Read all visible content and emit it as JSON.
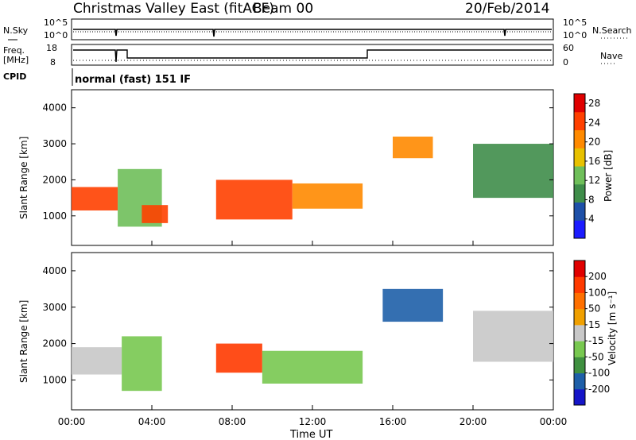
{
  "header": {
    "title": "Christmas Valley East (fitACF)",
    "beam": "Beam 00",
    "date": "20/Feb/2014"
  },
  "strips": {
    "nsky": {
      "label": "N.Sky",
      "scale_top": "10^5",
      "scale_bottom": "10^0"
    },
    "nsearch": {
      "label": "N.Search",
      "scale_top": "10^5",
      "scale_bottom": "10^0"
    },
    "freq": {
      "label_line1": "Freq.",
      "label_line2": "[MHz]",
      "tick_top": "18",
      "tick_bottom": "8"
    },
    "nave": {
      "label": "Nave",
      "tick_top": "60",
      "tick_bottom": "0"
    },
    "cpid": {
      "label": "CPID",
      "value": "normal (fast) 151 IF"
    }
  },
  "panels": {
    "power": {
      "ylabel": "Slant Range [km]",
      "cbar_label": "Power [dB]"
    },
    "velocity": {
      "ylabel": "Slant Range [km]",
      "cbar_label": "Velocity [m s⁻¹]"
    }
  },
  "xaxis": {
    "label": "Time UT",
    "ticks": [
      "00:00",
      "04:00",
      "08:00",
      "12:00",
      "16:00",
      "20:00",
      "00:00"
    ]
  },
  "chart_data": [
    {
      "type": "heatmap",
      "title": "Christmas Valley East (fitACF)",
      "xlabel": "Time UT",
      "ylabel": "Slant Range [km]",
      "xlim": [
        0,
        24
      ],
      "ylim": [
        180,
        4500
      ],
      "yticks": [
        1000,
        2000,
        3000,
        4000
      ],
      "colorbar": {
        "label": "Power [dB]",
        "ticks": [
          4,
          8,
          12,
          16,
          20,
          24,
          28
        ],
        "range": [
          0,
          30
        ],
        "colors": [
          "#1c1cff",
          "#1e50a8",
          "#3f8d4a",
          "#6fbf5a",
          "#e8c100",
          "#ff8a00",
          "#ff4000",
          "#e00000"
        ]
      },
      "regions": [
        {
          "t_start": 0.0,
          "t_end": 2.3,
          "range_km": [
            1150,
            1800
          ],
          "value": 26
        },
        {
          "t_start": 2.3,
          "t_end": 4.5,
          "range_km": [
            700,
            2300
          ],
          "value": 14
        },
        {
          "t_start": 3.5,
          "t_end": 4.8,
          "range_km": [
            800,
            1300
          ],
          "value": 24
        },
        {
          "t_start": 7.2,
          "t_end": 11.0,
          "range_km": [
            900,
            2000
          ],
          "value": 25
        },
        {
          "t_start": 11.0,
          "t_end": 14.5,
          "range_km": [
            1200,
            1900
          ],
          "value": 22
        },
        {
          "t_start": 16.0,
          "t_end": 18.0,
          "range_km": [
            2600,
            3200
          ],
          "value": 22
        },
        {
          "t_start": 20.0,
          "t_end": 24.0,
          "range_km": [
            1500,
            3000
          ],
          "value": 8
        }
      ]
    },
    {
      "type": "heatmap",
      "xlabel": "Time UT",
      "ylabel": "Slant Range [km]",
      "xlim": [
        0,
        24
      ],
      "ylim": [
        180,
        4500
      ],
      "yticks": [
        1000,
        2000,
        3000,
        4000
      ],
      "colorbar": {
        "label": "Velocity [m s⁻¹]",
        "ticks": [
          200,
          100,
          50,
          15,
          -15,
          -50,
          -100,
          -200
        ],
        "range": [
          -250,
          250
        ],
        "colors": [
          "#1515c8",
          "#1e5fa8",
          "#3f9040",
          "#78c850",
          "#c8c8c8",
          "#f0a000",
          "#ff7000",
          "#ff3a00",
          "#e00000"
        ]
      },
      "regions": [
        {
          "t_start": 0.0,
          "t_end": 2.5,
          "range_km": [
            1150,
            1900
          ],
          "value": 0
        },
        {
          "t_start": 2.5,
          "t_end": 4.5,
          "range_km": [
            700,
            2200
          ],
          "value": -60
        },
        {
          "t_start": 7.2,
          "t_end": 9.5,
          "range_km": [
            1200,
            2000
          ],
          "value": 150
        },
        {
          "t_start": 9.5,
          "t_end": 14.5,
          "range_km": [
            900,
            1800
          ],
          "value": -80
        },
        {
          "t_start": 15.5,
          "t_end": 18.5,
          "range_km": [
            2600,
            3500
          ],
          "value": -150
        },
        {
          "t_start": 20.0,
          "t_end": 24.0,
          "range_km": [
            1500,
            2900
          ],
          "value": 0
        }
      ]
    }
  ]
}
